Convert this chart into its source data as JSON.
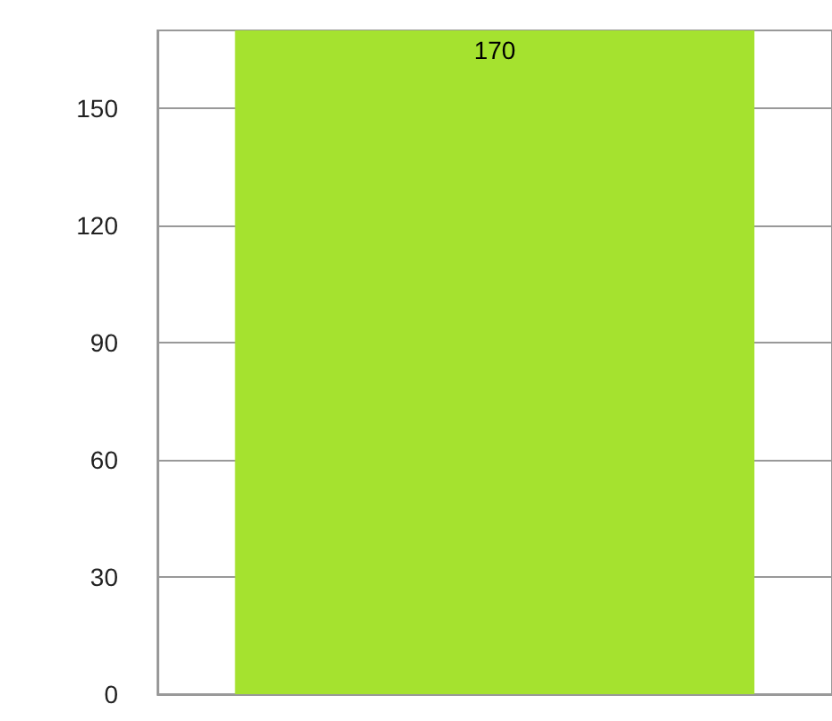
{
  "chart_data": {
    "type": "bar",
    "categories": [
      null
    ],
    "values": [
      170
    ],
    "color": "#a5e22f",
    "ylim": [
      0,
      170
    ],
    "yticks": [
      0,
      30,
      60,
      90,
      120,
      150
    ],
    "grid": "y",
    "data_labels": true
  }
}
